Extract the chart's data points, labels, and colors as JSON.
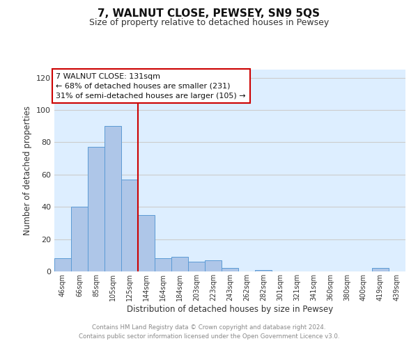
{
  "title": "7, WALNUT CLOSE, PEWSEY, SN9 5QS",
  "subtitle": "Size of property relative to detached houses in Pewsey",
  "xlabel": "Distribution of detached houses by size in Pewsey",
  "ylabel": "Number of detached properties",
  "bar_labels": [
    "46sqm",
    "66sqm",
    "85sqm",
    "105sqm",
    "125sqm",
    "144sqm",
    "164sqm",
    "184sqm",
    "203sqm",
    "223sqm",
    "243sqm",
    "262sqm",
    "282sqm",
    "301sqm",
    "321sqm",
    "341sqm",
    "360sqm",
    "380sqm",
    "400sqm",
    "419sqm",
    "439sqm"
  ],
  "bar_values": [
    8,
    40,
    77,
    90,
    57,
    35,
    8,
    9,
    6,
    7,
    2,
    0,
    1,
    0,
    0,
    0,
    0,
    0,
    0,
    2,
    0
  ],
  "bar_color": "#aec6e8",
  "bar_edge_color": "#5b9bd5",
  "vline_color": "#cc0000",
  "annotation_text": "7 WALNUT CLOSE: 131sqm\n← 68% of detached houses are smaller (231)\n31% of semi-detached houses are larger (105) →",
  "annotation_box_color": "#cc0000",
  "ylim": [
    0,
    125
  ],
  "yticks": [
    0,
    20,
    40,
    60,
    80,
    100,
    120
  ],
  "grid_color": "#cccccc",
  "bg_color": "#ddeeff",
  "footer_line1": "Contains HM Land Registry data © Crown copyright and database right 2024.",
  "footer_line2": "Contains public sector information licensed under the Open Government Licence v3.0."
}
